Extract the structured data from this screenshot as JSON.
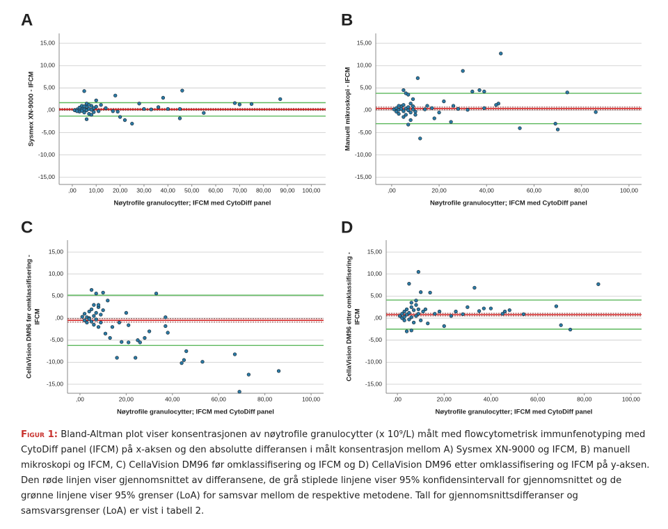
{
  "chart_data": [
    {
      "type": "scatter",
      "panel": "A",
      "ylabel": [
        "Sysmex XN-9000 - IFCM"
      ],
      "xlabel": "Nøytrofile granulocytter; IFCM  med CytoDiff panel",
      "x": [
        1,
        2,
        3,
        3,
        4,
        4,
        5,
        5,
        6,
        6,
        7,
        7,
        8,
        8,
        9,
        9,
        10,
        11,
        3,
        2,
        6,
        7,
        5,
        4,
        8,
        5,
        18,
        38,
        46,
        87,
        70,
        68,
        75,
        36,
        30,
        45,
        45,
        55,
        25,
        22,
        20,
        6,
        10,
        28,
        17,
        14,
        12,
        19,
        33,
        40
      ],
      "y": [
        0,
        0.2,
        0.1,
        -0.3,
        0.5,
        1,
        0.2,
        -0.5,
        0.8,
        0,
        0.3,
        -0.8,
        1,
        0.1,
        0.5,
        -0.4,
        0.8,
        -0.2,
        0.6,
        -0.2,
        1.5,
        1.2,
        0.9,
        -0.1,
        -1,
        4.3,
        3.3,
        2.8,
        4.4,
        2.5,
        1.3,
        1.6,
        1.4,
        0.7,
        0.3,
        0.3,
        -1.8,
        -0.6,
        -3,
        -2.2,
        -1.5,
        -2,
        2.2,
        1.5,
        -0.2,
        0.5,
        1.2,
        -0.3,
        0.2,
        0.3
      ],
      "mean": 0.2,
      "ci": [
        0.0,
        0.4
      ],
      "loa": [
        -1.3,
        1.7
      ],
      "point_color": "#2b7ba6",
      "mean_color": "#d42020",
      "ci_color": "#8b2a2a",
      "loa_color": "#5cb85c",
      "xlim": [
        -5.5,
        106
      ],
      "ylim": [
        -16.6,
        17.2
      ],
      "xticks": [
        {
          "value": 0,
          "label": ",00"
        },
        {
          "value": 10,
          "label": "10,00"
        },
        {
          "value": 20,
          "label": "20,00"
        },
        {
          "value": 30,
          "label": "30,00"
        },
        {
          "value": 40,
          "label": "40,00"
        },
        {
          "value": 50,
          "label": "50,00"
        },
        {
          "value": 60,
          "label": "60,00"
        },
        {
          "value": 70,
          "label": "70,00"
        },
        {
          "value": 80,
          "label": "80,00"
        },
        {
          "value": 90,
          "label": "90,00"
        },
        {
          "value": 100,
          "label": "100,00"
        }
      ],
      "yticks": [
        {
          "value": 15,
          "label": "15,00"
        },
        {
          "value": 10,
          "label": "10,00"
        },
        {
          "value": 5,
          "label": "5,00"
        },
        {
          "value": 0,
          "label": ",00"
        },
        {
          "value": -5,
          "label": "-5,00"
        },
        {
          "value": -10,
          "label": "-10,00"
        },
        {
          "value": -15,
          "label": "-15,00"
        }
      ],
      "grid": true
    },
    {
      "type": "scatter",
      "panel": "B",
      "ylabel": [
        "Manuell mikroskopi - IFCM"
      ],
      "xlabel": "Nøytrofile granulocytter; IFCM  med CytoDiff panel",
      "x": [
        1,
        2,
        2,
        3,
        3,
        4,
        4,
        5,
        5,
        6,
        6,
        7,
        7,
        8,
        8,
        9,
        9,
        10,
        3,
        5,
        46,
        30,
        11,
        34,
        37,
        39,
        74,
        45,
        44,
        26,
        39,
        54,
        69,
        70,
        86,
        12,
        25,
        7,
        20,
        17,
        22,
        18,
        15,
        10,
        8,
        6,
        7,
        5,
        9,
        14,
        28,
        32
      ],
      "y": [
        0.2,
        -0.3,
        0.5,
        0.1,
        -0.8,
        0.9,
        0.3,
        -0.2,
        1.2,
        0.4,
        -1,
        0.7,
        0,
        1.5,
        -0.5,
        0.2,
        0.9,
        -0.3,
        1,
        -1.5,
        12.7,
        8.8,
        7.2,
        4.2,
        4.5,
        4.2,
        4,
        1.5,
        1.2,
        1,
        0.5,
        -4,
        -3,
        -4.3,
        -0.4,
        -6.3,
        -2.6,
        -3.2,
        -0.5,
        0.5,
        2,
        -1.8,
        1,
        -1,
        -2.2,
        3.8,
        3.5,
        4.5,
        2.5,
        0.2,
        0.3,
        0.1
      ],
      "mean": 0.4,
      "ci": [
        0.1,
        0.7
      ],
      "loa": [
        -3.0,
        3.8
      ],
      "point_color": "#2b7ba6",
      "mean_color": "#d42020",
      "ci_color": "#8b2a2a",
      "loa_color": "#5cb85c",
      "xlim": [
        -6.7,
        105.3
      ],
      "ylim": [
        -16.6,
        17.2
      ],
      "xticks": [
        {
          "value": 0,
          "label": ",00"
        },
        {
          "value": 20,
          "label": "20,00"
        },
        {
          "value": 40,
          "label": "40,00"
        },
        {
          "value": 60,
          "label": "60,00"
        },
        {
          "value": 80,
          "label": "80,00"
        },
        {
          "value": 100,
          "label": "100,00"
        }
      ],
      "yticks": [
        {
          "value": 15,
          "label": "15,00"
        },
        {
          "value": 10,
          "label": "10,00"
        },
        {
          "value": 5,
          "label": "5,00"
        },
        {
          "value": 0,
          "label": ",00"
        },
        {
          "value": -5,
          "label": "-5,00"
        },
        {
          "value": -10,
          "label": "-10,00"
        },
        {
          "value": -15,
          "label": "-15,00"
        }
      ],
      "grid": true
    },
    {
      "type": "scatter",
      "panel": "C",
      "ylabel": [
        "CellaVision DM96 før omklassifisering -",
        "IFCM"
      ],
      "xlabel": "Nøytrofile granulocytter; IFCM  med CytoDiff panel",
      "x": [
        1,
        2,
        2,
        3,
        3,
        4,
        4,
        5,
        5,
        6,
        6,
        7,
        7,
        8,
        8,
        9,
        9,
        10,
        4,
        6,
        5,
        7,
        10,
        33,
        12,
        8,
        37,
        37,
        38,
        20,
        17,
        21,
        18,
        21,
        25,
        26,
        28,
        30,
        16,
        24,
        44,
        45,
        46,
        53,
        67,
        69,
        73,
        86,
        14,
        11,
        13
      ],
      "y": [
        0.3,
        -0.5,
        1,
        0.2,
        -1,
        1.5,
        0,
        -0.8,
        2,
        0.5,
        -1.5,
        1.2,
        -0.3,
        2.5,
        -2,
        0.8,
        -1,
        1.8,
        -0.2,
        3,
        6.4,
        5.6,
        5.8,
        5.6,
        4,
        3,
        0.2,
        -1.8,
        -3.3,
        1.2,
        -1,
        -1.6,
        -5.4,
        -5.5,
        -5,
        -5.5,
        -4.5,
        -3,
        -9,
        -9,
        -10.2,
        -9.5,
        -7.5,
        -9.9,
        -8.2,
        -16.7,
        -12.8,
        -12,
        -2,
        -3.5,
        -4.5
      ],
      "mean": -0.5,
      "ci": [
        -0.9,
        -0.1
      ],
      "loa": [
        -6.2,
        5.2
      ],
      "point_color": "#2b7ba6",
      "mean_color": "#d42020",
      "ci_color": "#8b2a2a",
      "loa_color": "#5cb85c",
      "xlim": [
        -5.4,
        105.4
      ],
      "ylim": [
        -17.05,
        17.7
      ],
      "xticks": [
        {
          "value": 0,
          "label": ",00"
        },
        {
          "value": 20,
          "label": "20,00"
        },
        {
          "value": 40,
          "label": "40,00"
        },
        {
          "value": 60,
          "label": "60,00"
        },
        {
          "value": 80,
          "label": "80,00"
        },
        {
          "value": 100,
          "label": "100,00"
        }
      ],
      "yticks": [
        {
          "value": 15,
          "label": "15,00"
        },
        {
          "value": 10,
          "label": "10,00"
        },
        {
          "value": 5,
          "label": "5,00"
        },
        {
          "value": 0,
          "label": ",00"
        },
        {
          "value": -5,
          "label": "-5,00"
        },
        {
          "value": -10,
          "label": "-10,00"
        },
        {
          "value": -15,
          "label": "-15,00"
        }
      ],
      "grid": true
    },
    {
      "type": "scatter",
      "panel": "D",
      "ylabel": [
        "CellaVision DM96 etter omklassifisering -",
        "IFCM"
      ],
      "xlabel": "Nøytrofile granulocytter; IFCM  med CytoDiff panel",
      "x": [
        1,
        2,
        2,
        3,
        3,
        4,
        4,
        5,
        5,
        6,
        6,
        7,
        7,
        8,
        8,
        9,
        9,
        10,
        3,
        11,
        9,
        5,
        14,
        10,
        33,
        86,
        68,
        70,
        74,
        4,
        6,
        20,
        23,
        25,
        28,
        30,
        35,
        37,
        40,
        45,
        46,
        48,
        54,
        8,
        6,
        12,
        16,
        18,
        13
      ],
      "y": [
        0.5,
        1,
        0,
        1.5,
        -0.5,
        2,
        0.8,
        -0.3,
        1.2,
        2.5,
        0.2,
        1.8,
        -1,
        3,
        0.5,
        1,
        2,
        -0.5,
        0.3,
        1.5,
        10.5,
        7.8,
        5.8,
        5.9,
        6.9,
        7.7,
        2.7,
        -1.6,
        -2.6,
        -3,
        -2.8,
        -1.8,
        0.5,
        1.5,
        0.9,
        2.5,
        1.6,
        2.2,
        2.2,
        1,
        1.5,
        1.8,
        0.9,
        4,
        3.5,
        2,
        1,
        1.5,
        -1.2
      ],
      "mean": 0.8,
      "ci": [
        0.5,
        1.1
      ],
      "loa": [
        -2.5,
        4.1
      ],
      "point_color": "#2b7ba6",
      "mean_color": "#d42020",
      "ci_color": "#8b2a2a",
      "loa_color": "#5cb85c",
      "xlim": [
        -4.8,
        104.5
      ],
      "ylim": [
        -17.05,
        17.7
      ],
      "xticks": [
        {
          "value": 0,
          "label": ",00"
        },
        {
          "value": 20,
          "label": "20,00"
        },
        {
          "value": 40,
          "label": "40,00"
        },
        {
          "value": 60,
          "label": "60,00"
        },
        {
          "value": 80,
          "label": "80,00"
        },
        {
          "value": 100,
          "label": "100,00"
        }
      ],
      "yticks": [
        {
          "value": 15,
          "label": "15,00"
        },
        {
          "value": 10,
          "label": "10,00"
        },
        {
          "value": 5,
          "label": "5,00"
        },
        {
          "value": 0,
          "label": ",00"
        },
        {
          "value": -5,
          "label": "-5,00"
        },
        {
          "value": -10,
          "label": "-10,00"
        },
        {
          "value": -15,
          "label": "-15,00"
        }
      ],
      "grid": true
    }
  ],
  "caption": {
    "label": "Figur 1:",
    "text": "Bland-Altman plot viser konsentrasjonen av nøytrofile granulocytter (x 10⁹/L) målt med flowcytometrisk immunfenotyping med CytoDiff panel (IFCM) på x-aksen og den absolutte differansen i målt konsentrasjon mellom A) Sysmex XN-9000 og IFCM, B) manuell mikroskopi og IFCM, C) CellaVision DM96 før omklassifisering og IFCM og D) CellaVision DM96 etter omklassifisering og IFCM på y-aksen. Den røde linjen viser gjennomsnittet av differansene, de grå stiplede linjene viser 95% konfidensintervall for gjennomsnittet og de grønne linjene viser 95% grenser (LoA) for samsvar mellom de respektive metodene. Tall for gjennomsnittsdifferanser og samsvarsgrenser (LoA) er vist i tabell 2."
  }
}
